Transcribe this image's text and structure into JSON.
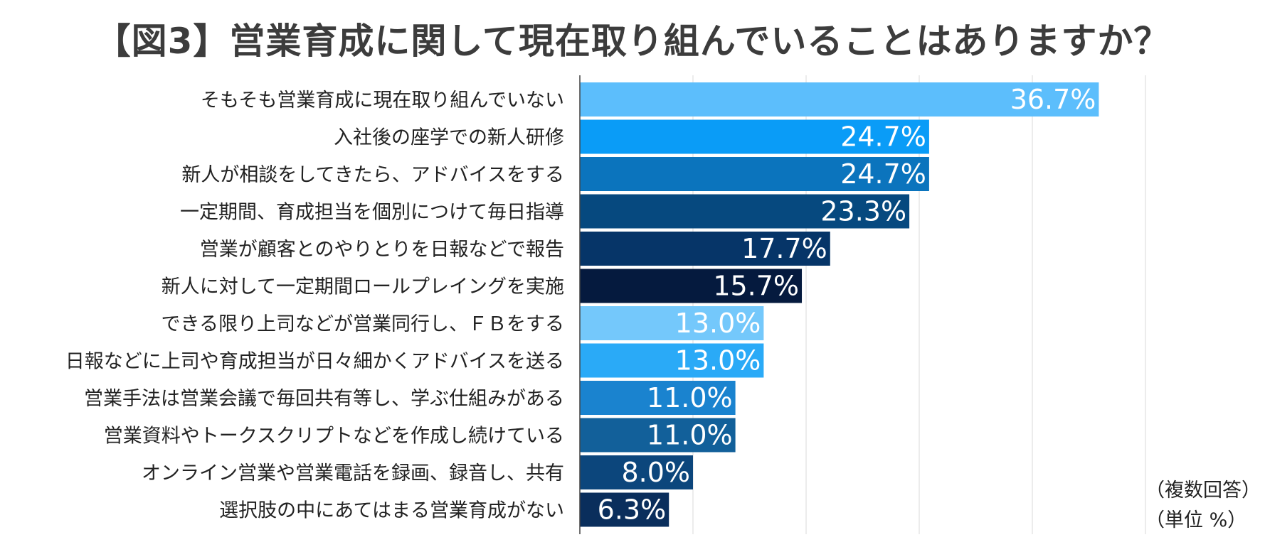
{
  "chart_data": {
    "type": "bar",
    "orientation": "horizontal",
    "title": "【図3】営業育成に関して現在取り組んでいることはありますか？",
    "xlabel": "",
    "ylabel": "",
    "xlim": [
      0,
      40
    ],
    "grid": true,
    "value_suffix": "%",
    "categories": [
      "そもそも営業育成に現在取り組んでいない",
      "入社後の座学での新人研修",
      "新人が相談をしてきたら、アドバイスをする",
      "一定期間、育成担当を個別につけて毎日指導",
      "営業が顧客とのやりとりを日報などで報告",
      "新人に対して一定期間ロールプレイングを実施",
      "できる限り上司などが営業同行し、ＦＢをする",
      "日報などに上司や育成担当が日々細かくアドバイスを送る",
      "営業手法は営業会議で毎回共有等し、学ぶ仕組みがある",
      "営業資料やトークスクリプトなどを作成し続けている",
      "オンライン営業や営業電話を録画、録音し、共有",
      "選択肢の中にあてはまる営業育成がない"
    ],
    "values": [
      36.7,
      24.7,
      24.7,
      23.3,
      17.7,
      15.7,
      13.0,
      13.0,
      11.0,
      11.0,
      8.0,
      6.3
    ],
    "value_labels": [
      "36.7%",
      "24.7%",
      "24.7%",
      "23.3%",
      "17.7%",
      "15.7%",
      "13.0%",
      "13.0%",
      "11.0%",
      "11.0%",
      "8.0%",
      "6.3%"
    ],
    "colors": [
      "#5cbefc",
      "#0a9cf7",
      "#0b74bd",
      "#06497f",
      "#063568",
      "#051a3e",
      "#74c8fb",
      "#2aaaf7",
      "#1a83cf",
      "#12609a",
      "#0c467c",
      "#0a2e5c"
    ],
    "notes": [
      "（複数回答）",
      "（単位 %）"
    ]
  }
}
